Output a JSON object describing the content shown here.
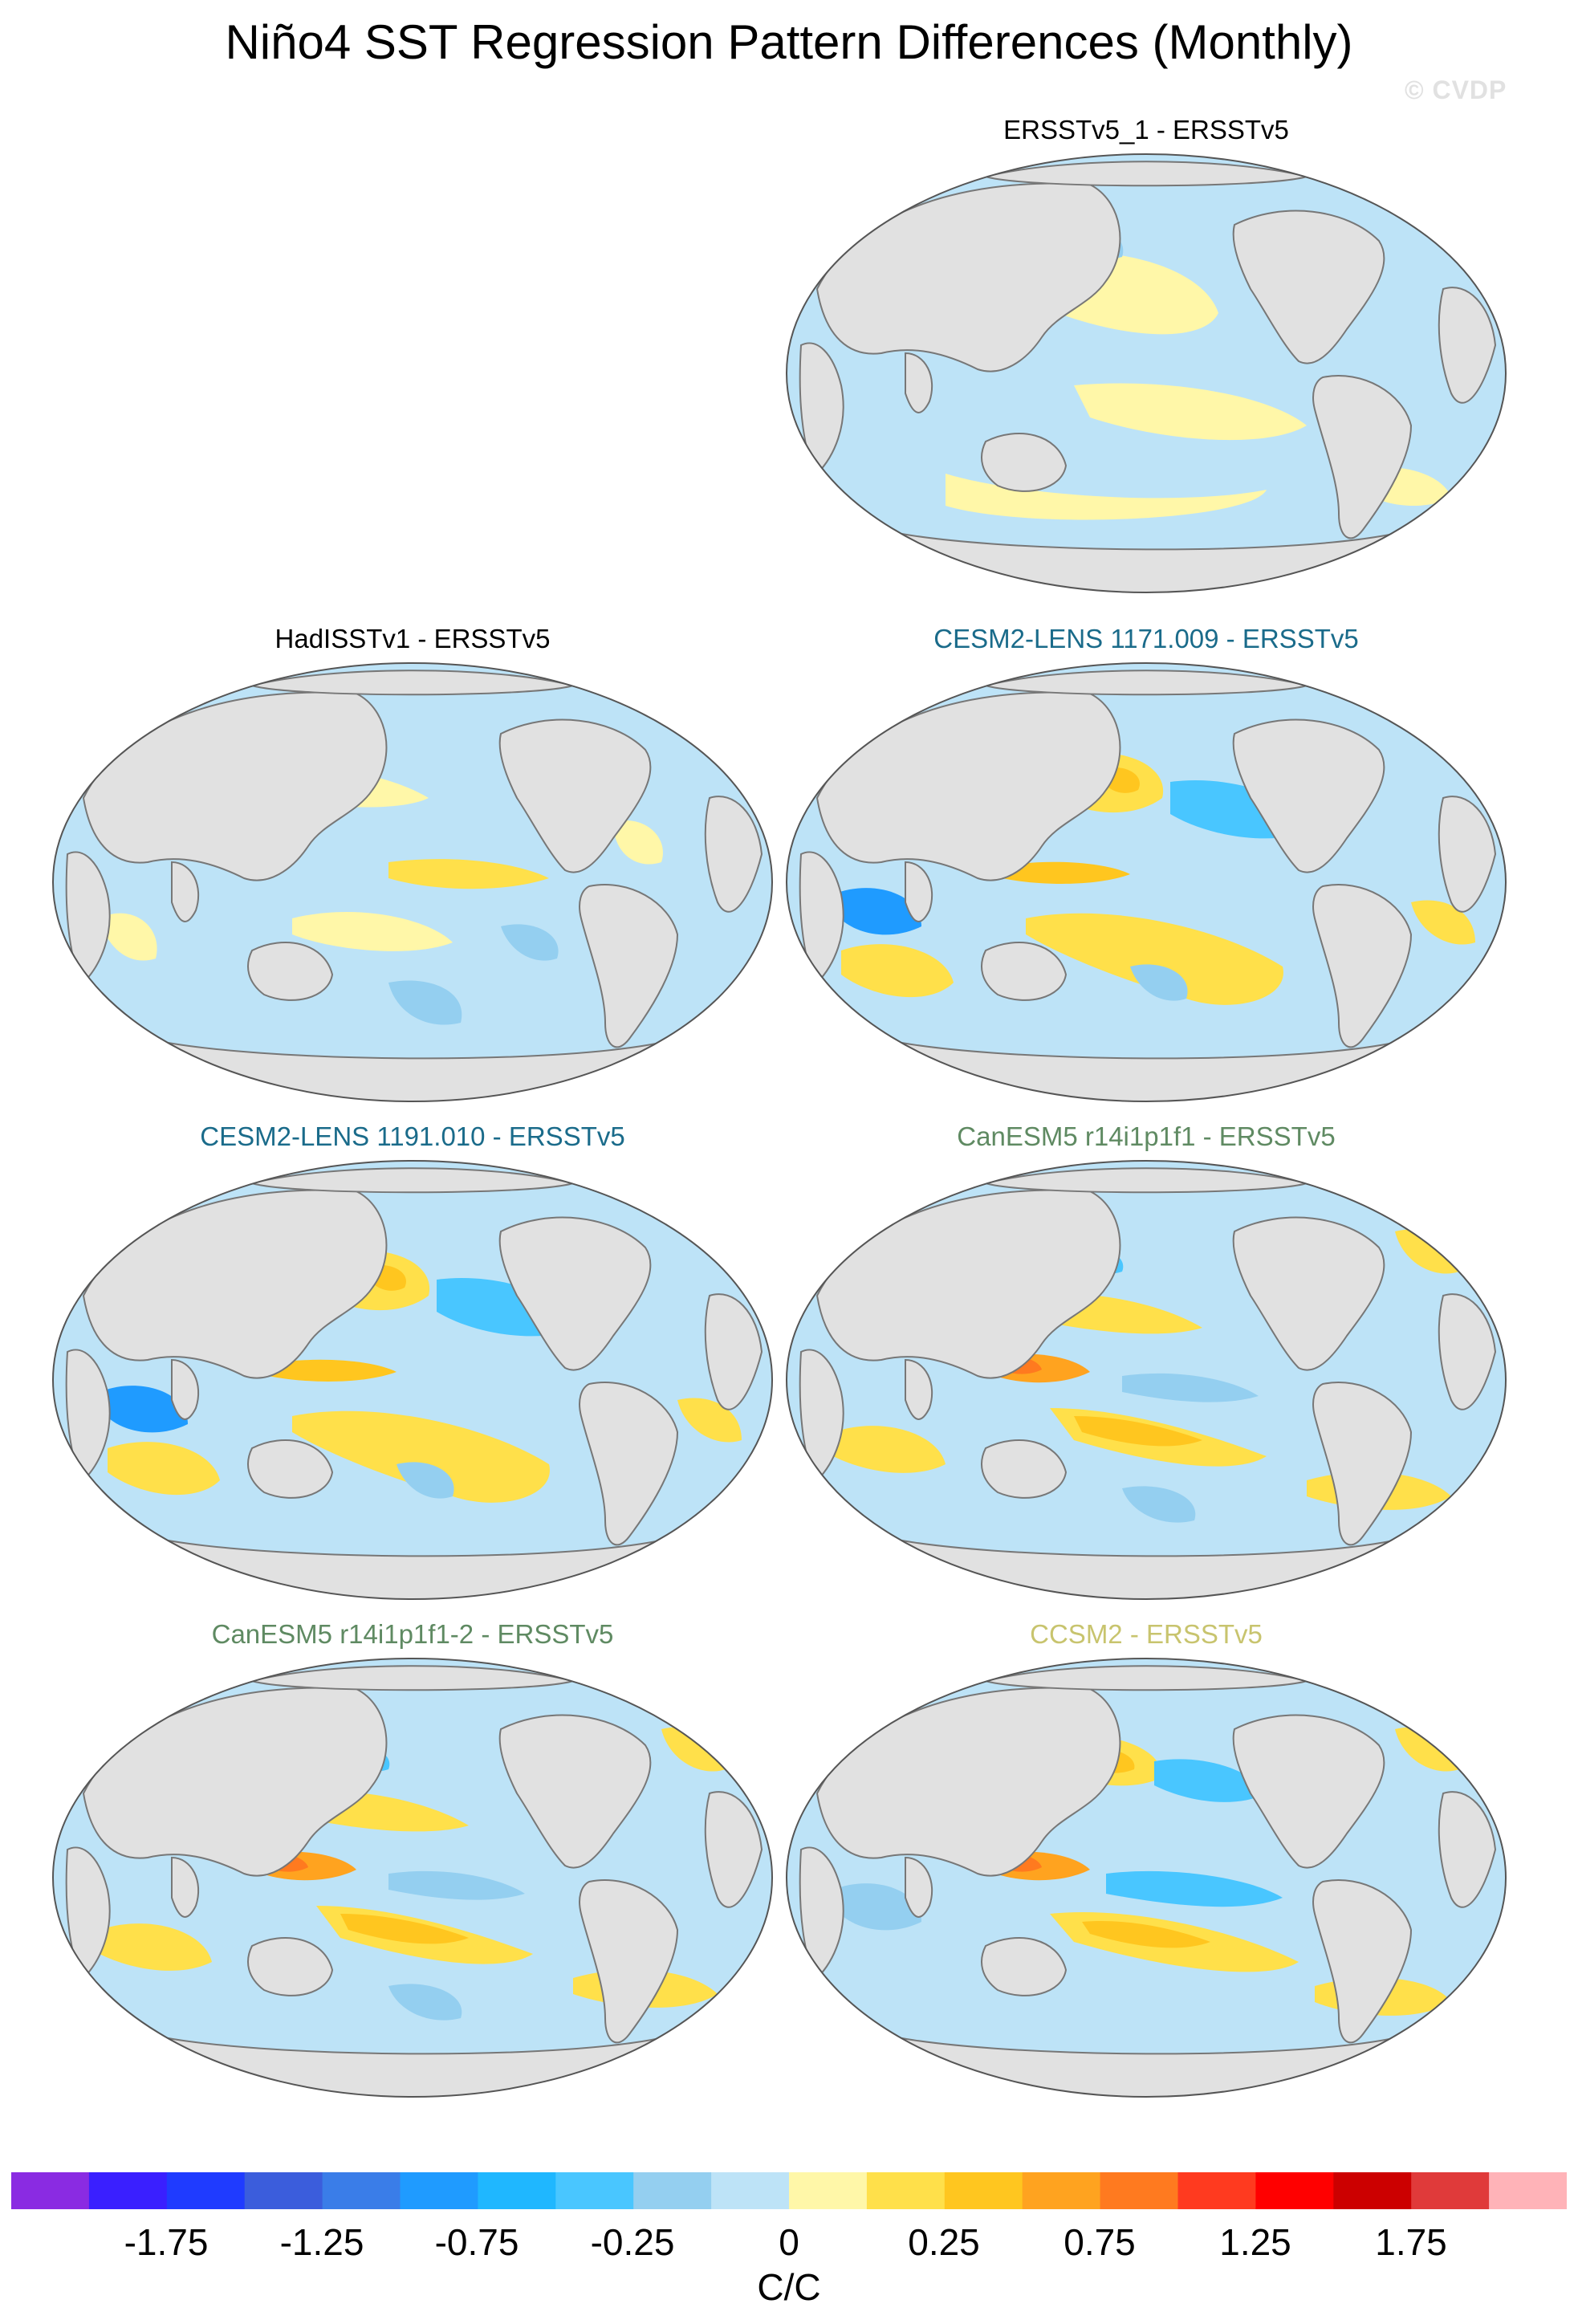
{
  "title": "Niño4 SST Regression Pattern Differences (Monthly)",
  "copyright": "© CVDP",
  "panels": [
    {
      "title": "ERSSTv5_1 - ERSSTv5",
      "title_color": "#000000",
      "pattern": "weak"
    },
    {
      "title": "HadISSTv1 - ERSSTv5",
      "title_color": "#000000",
      "pattern": "noisy"
    },
    {
      "title": "CESM2-LENS 1171.009 - ERSSTv5",
      "title_color": "#1a6b8a",
      "pattern": "cesm"
    },
    {
      "title": "CESM2-LENS 1191.010 - ERSSTv5",
      "title_color": "#1a6b8a",
      "pattern": "cesm"
    },
    {
      "title": "CanESM5 r14i1p1f1 - ERSSTv5",
      "title_color": "#5f8a62",
      "pattern": "canesm"
    },
    {
      "title": "CanESM5 r14i1p1f1-2 - ERSSTv5",
      "title_color": "#5f8a62",
      "pattern": "canesm"
    },
    {
      "title": "CCSM2 - ERSSTv5",
      "title_color": "#c8c46e",
      "pattern": "ccsm"
    }
  ],
  "colorbar": {
    "colors": [
      "#8a2be2",
      "#3a1fff",
      "#1f3bff",
      "#3b5ddc",
      "#3a7de8",
      "#1f9bff",
      "#1fb7ff",
      "#49c6ff",
      "#94cff0",
      "#bde3f7",
      "#fff7a8",
      "#ffe04a",
      "#ffc61f",
      "#ffa31f",
      "#ff7a1f",
      "#ff3a1f",
      "#ff0000",
      "#cc0000",
      "#e03a3a",
      "#ffb3b8"
    ],
    "tick_labels": [
      "-1.75",
      "-1.25",
      "-0.75",
      "-0.25",
      "0",
      "0.25",
      "0.75",
      "1.25",
      "1.75"
    ],
    "units": "C/C"
  },
  "map_colors": {
    "land": "#e1e1e1",
    "coast": "#777777",
    "neutral_blue": "#bde3f7",
    "neutral_yellow": "#fff7a8",
    "mid_blue": "#94cff0",
    "blue": "#49c6ff",
    "deep_blue": "#1f9bff",
    "yellow": "#ffe04a",
    "orange": "#ffc61f",
    "dark_orange": "#ffa31f",
    "red_orange": "#ff7a1f"
  }
}
